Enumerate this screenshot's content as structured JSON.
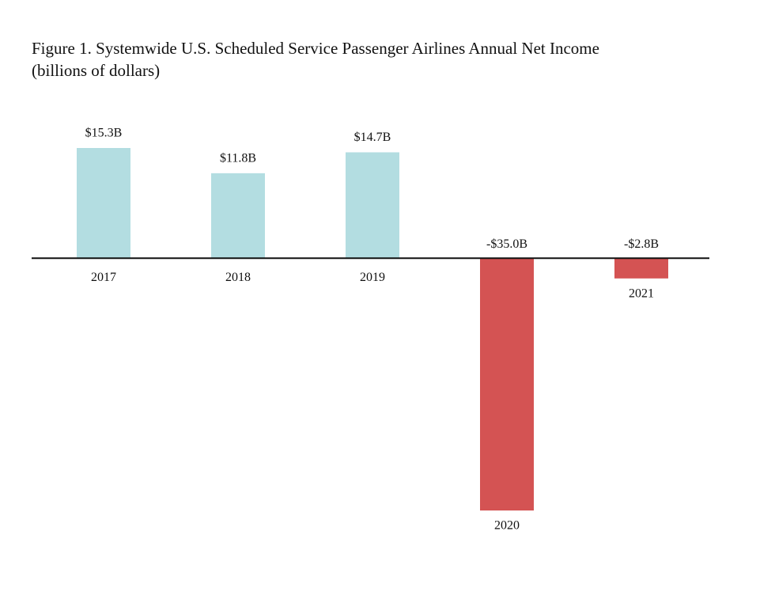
{
  "chart_data": {
    "type": "bar",
    "title": "Figure 1. Systemwide U.S. Scheduled Service Passenger Airlines Annual Net Income",
    "subtitle": "(billions of dollars)",
    "categories": [
      "2017",
      "2018",
      "2019",
      "2020",
      "2021"
    ],
    "values": [
      15.3,
      11.8,
      14.7,
      -35.0,
      -2.8
    ],
    "value_labels": [
      "$15.3B",
      "$11.8B",
      "$14.7B",
      "-$35.0B",
      "-$2.8B"
    ],
    "colors": [
      "#b3dde1",
      "#b3dde1",
      "#b3dde1",
      "#d45353",
      "#d45353"
    ]
  }
}
